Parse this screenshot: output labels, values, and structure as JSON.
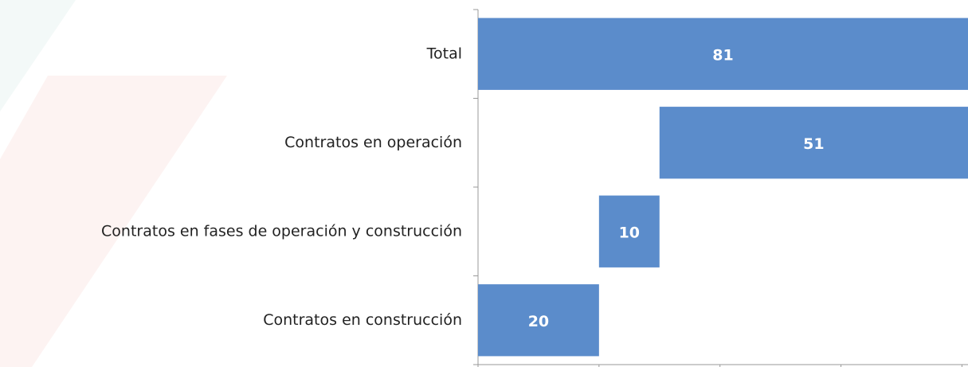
{
  "chart_data": {
    "type": "waterfall",
    "orientation": "horizontal",
    "categories": [
      "Total",
      "Contratos en operación",
      "Contratos en fases de operación y construcción",
      "Contratos en construcción"
    ],
    "values": [
      81,
      51,
      10,
      20
    ],
    "color": "#5b8ccb",
    "xlim": [
      0,
      81
    ],
    "xticks": [
      0,
      20,
      40,
      60,
      80
    ]
  }
}
